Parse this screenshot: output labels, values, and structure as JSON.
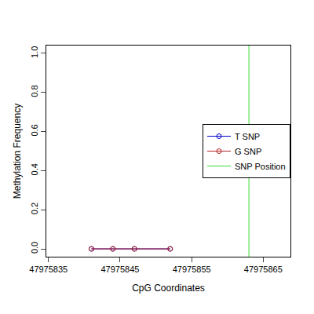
{
  "chart_data": {
    "type": "line",
    "x_label": "CpG Coordinates",
    "y_label": "Methylation Frequency",
    "x": [
      47975841,
      47975844,
      47975847,
      47975852
    ],
    "series": [
      {
        "name": "T SNP",
        "color": "#0000cd",
        "values": [
          0,
          0,
          0,
          0
        ],
        "marker": "circle-open"
      },
      {
        "name": "G SNP",
        "color": "#b22222",
        "values": [
          0,
          0,
          0,
          0
        ],
        "marker": "circle-open"
      }
    ],
    "snp_position": {
      "name": "SNP Position",
      "color": "#33dd33",
      "x": 47975863
    },
    "xlim": [
      47975834.7,
      47975868.8
    ],
    "xticks": [
      47975835,
      47975845,
      47975855,
      47975865
    ],
    "ylim": [
      -0.04,
      1.04
    ],
    "yticks": [
      {
        "value": 0,
        "label": "0.0"
      },
      0.2,
      0.4,
      0.6,
      0.8,
      {
        "value": 1,
        "label": "1.0"
      }
    ],
    "grid": false,
    "legend": "right"
  }
}
